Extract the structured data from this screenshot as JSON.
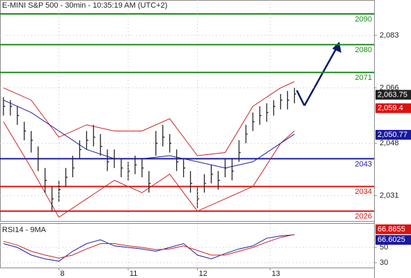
{
  "chart_data": [
    {
      "type": "hlc",
      "title": "E-MINI S&P 500 - 30min - 10:35:19 AM (UTC+2)",
      "x": [
        1,
        3,
        5,
        7,
        9,
        11,
        13,
        15,
        17,
        19,
        21,
        23,
        25,
        27,
        29,
        31,
        33,
        35,
        37,
        39,
        41,
        43,
        45,
        47,
        49,
        51,
        53,
        55,
        57,
        59,
        61,
        63,
        65,
        67,
        69,
        71,
        73,
        75,
        77,
        79,
        81,
        83,
        85
      ],
      "high": [
        2063,
        2062,
        2060,
        2055,
        2052,
        2047,
        2040,
        2034,
        2036,
        2040,
        2044,
        2049,
        2052,
        2054,
        2051,
        2046,
        2046,
        2043,
        2042,
        2044,
        2043,
        2039,
        2052,
        2054,
        2051,
        2046,
        2043,
        2039,
        2034,
        2038,
        2041,
        2039,
        2043,
        2043,
        2049,
        2054,
        2058,
        2060,
        2061,
        2062,
        2064,
        2065,
        2066
      ],
      "low": [
        2057,
        2057,
        2054,
        2049,
        2045,
        2039,
        2032,
        2026,
        2029,
        2034,
        2037,
        2043,
        2046,
        2047,
        2044,
        2039,
        2040,
        2037,
        2036,
        2038,
        2037,
        2032,
        2044,
        2047,
        2045,
        2039,
        2037,
        2032,
        2027,
        2032,
        2035,
        2033,
        2037,
        2036,
        2042,
        2048,
        2052,
        2054,
        2055,
        2057,
        2059,
        2059,
        2061
      ],
      "close": [
        2060,
        2060,
        2057,
        2052,
        2049,
        2043,
        2036,
        2030,
        2033,
        2037,
        2040,
        2046,
        2049,
        2050,
        2047,
        2042,
        2043,
        2040,
        2039,
        2041,
        2040,
        2035,
        2048,
        2050,
        2048,
        2042,
        2040,
        2035,
        2030,
        2035,
        2038,
        2036,
        2040,
        2039,
        2045,
        2051,
        2055,
        2057,
        2058,
        2060,
        2062,
        2062,
        2064
      ],
      "color": "#222222",
      "series": [
        {
          "color": "#cc2222",
          "x": [
            1,
            9,
            17,
            25,
            33,
            41,
            49,
            57,
            65,
            73,
            81,
            85
          ],
          "values": [
            2066,
            2062,
            2050,
            2054,
            2052,
            2052,
            2056,
            2044,
            2045,
            2060,
            2066,
            2068
          ]
        },
        {
          "color": "#cc2222",
          "x": [
            1,
            9,
            17,
            25,
            33,
            41,
            49,
            57,
            65,
            73,
            81,
            85
          ],
          "values": [
            2055,
            2040,
            2024,
            2030,
            2036,
            2032,
            2038,
            2026,
            2030,
            2034,
            2048,
            2052
          ]
        },
        {
          "color": "#1a1aa0",
          "x": [
            1,
            9,
            17,
            25,
            33,
            41,
            49,
            57,
            65,
            73,
            81,
            85
          ],
          "values": [
            2062,
            2058,
            2052,
            2046,
            2043,
            2043,
            2044,
            2042,
            2040,
            2042,
            2048,
            2051
          ]
        }
      ],
      "levels": [
        {
          "value": 2090,
          "color": "#1a8c1a"
        },
        {
          "value": 2080,
          "color": "#1a8c1a"
        },
        {
          "value": 2071,
          "color": "#1a8c1a"
        },
        {
          "value": 2043,
          "color": "#1a1aa0"
        },
        {
          "value": 2034,
          "color": "#dd1111"
        },
        {
          "value": 2026,
          "color": "#dd1111"
        }
      ],
      "price_tags": [
        {
          "value": 2063.75,
          "label": "2,063.75",
          "color": "#222222"
        },
        {
          "value": 2059.4,
          "label": "2,059.4",
          "color": "#dd1111"
        },
        {
          "value": 2050.77,
          "label": "2,050.77",
          "color": "#1a1aa0"
        }
      ],
      "xlim": [
        0,
        108
      ],
      "ylim": [
        2022.8,
        2094.5
      ],
      "yticks": [
        {
          "value": 2083,
          "label": "2,083"
        },
        {
          "value": 2066,
          "label": "2,066"
        },
        {
          "value": 2048,
          "label": "2,048"
        },
        {
          "value": 2031,
          "label": "2,031"
        }
      ],
      "grid": true
    },
    {
      "type": "line",
      "title": "RSI14 - 9MA",
      "x": [
        1,
        5,
        9,
        13,
        17,
        21,
        25,
        29,
        33,
        37,
        41,
        45,
        49,
        53,
        57,
        61,
        65,
        69,
        73,
        77,
        81,
        85
      ],
      "series": [
        {
          "color": "#1a1aa0",
          "values": [
            55,
            50,
            40,
            35,
            32,
            45,
            55,
            60,
            52,
            50,
            48,
            45,
            50,
            55,
            40,
            35,
            42,
            48,
            52,
            62,
            65,
            66.6
          ]
        },
        {
          "color": "#cc2222",
          "values": [
            58,
            53,
            45,
            40,
            36,
            40,
            48,
            55,
            55,
            52,
            50,
            47,
            48,
            52,
            46,
            40,
            40,
            45,
            50,
            57,
            63,
            66.9
          ]
        }
      ],
      "price_tags": [
        {
          "value": 66.8655,
          "label": "66.8655",
          "color": "#dd1111"
        },
        {
          "value": 66.6025,
          "label": "66.6025",
          "color": "#1a1aa0"
        }
      ],
      "xlim": [
        0,
        108
      ],
      "ylim": [
        23.6,
        80.9
      ],
      "yticks": [
        50,
        30
      ],
      "xticks": [
        {
          "value": 17,
          "label": "8"
        },
        {
          "value": 37,
          "label": "11"
        },
        {
          "value": 57,
          "label": "12"
        },
        {
          "value": 78,
          "label": "13"
        }
      ],
      "grid": true
    }
  ]
}
